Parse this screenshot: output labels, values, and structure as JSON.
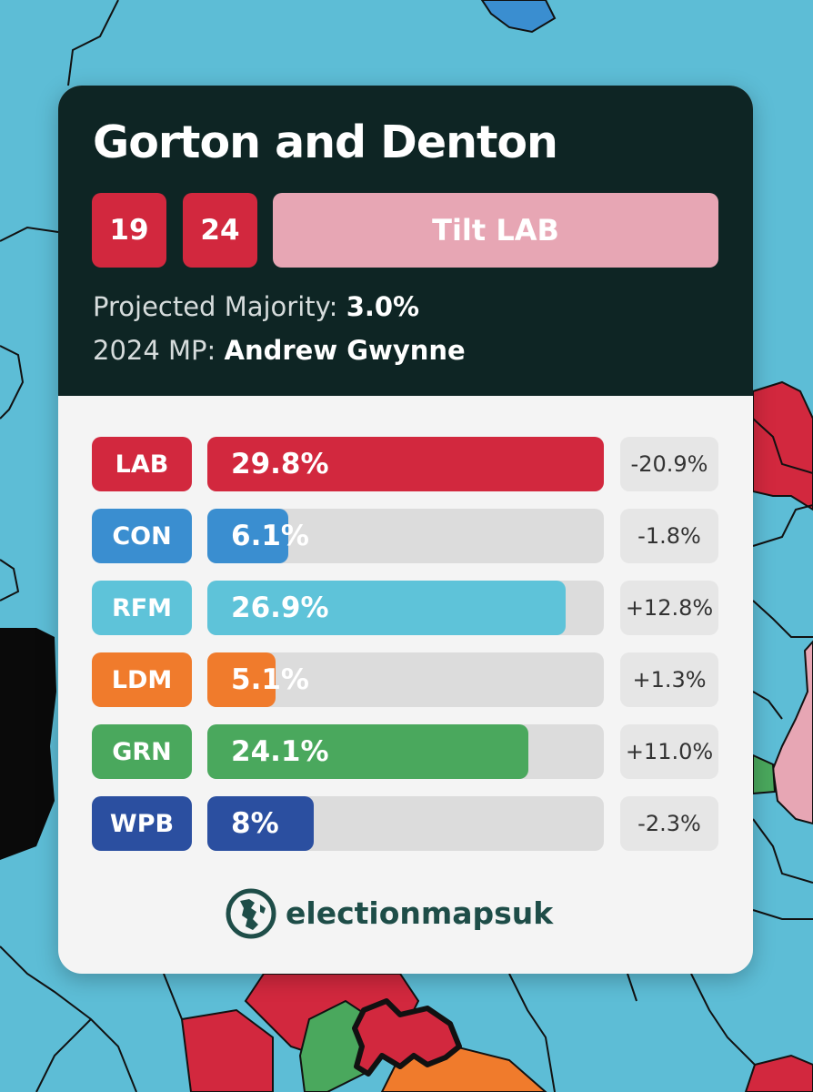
{
  "colors": {
    "map_background": "#5dbdd6",
    "LAB": "#d2283e",
    "CON": "#3a8ed0",
    "RFM": "#5ec3d9",
    "LDM": "#f07b2c",
    "GRN": "#4aa85d",
    "WPB": "#2b4fa0",
    "tilt_lab": "#e7a6b4",
    "header": "#0e2524"
  },
  "card": {
    "title": "Gorton and Denton",
    "badges": [
      "19",
      "24"
    ],
    "status": "Tilt LAB",
    "majority_label": "Projected Majority:",
    "majority_value": "3.0%",
    "mp_label": "2024 MP:",
    "mp_value": "Andrew Gwynne"
  },
  "results": [
    {
      "party": "LAB",
      "share": 29.8,
      "share_label": "29.8%",
      "change": "-20.9%",
      "color": "#d2283e"
    },
    {
      "party": "CON",
      "share": 6.1,
      "share_label": "6.1%",
      "change": "-1.8%",
      "color": "#3a8ed0"
    },
    {
      "party": "RFM",
      "share": 26.9,
      "share_label": "26.9%",
      "change": "+12.8%",
      "color": "#5ec3d9"
    },
    {
      "party": "LDM",
      "share": 5.1,
      "share_label": "5.1%",
      "change": "+1.3%",
      "color": "#f07b2c"
    },
    {
      "party": "GRN",
      "share": 24.1,
      "share_label": "24.1%",
      "change": "+11.0%",
      "color": "#4aa85d"
    },
    {
      "party": "WPB",
      "share": 8,
      "share_label": "8%",
      "change": "-2.3%",
      "color": "#2b4fa0"
    }
  ],
  "bar_scale_max": 29.8,
  "brand": {
    "name": "electionmapsuk",
    "icon": "globe-logo-icon"
  }
}
